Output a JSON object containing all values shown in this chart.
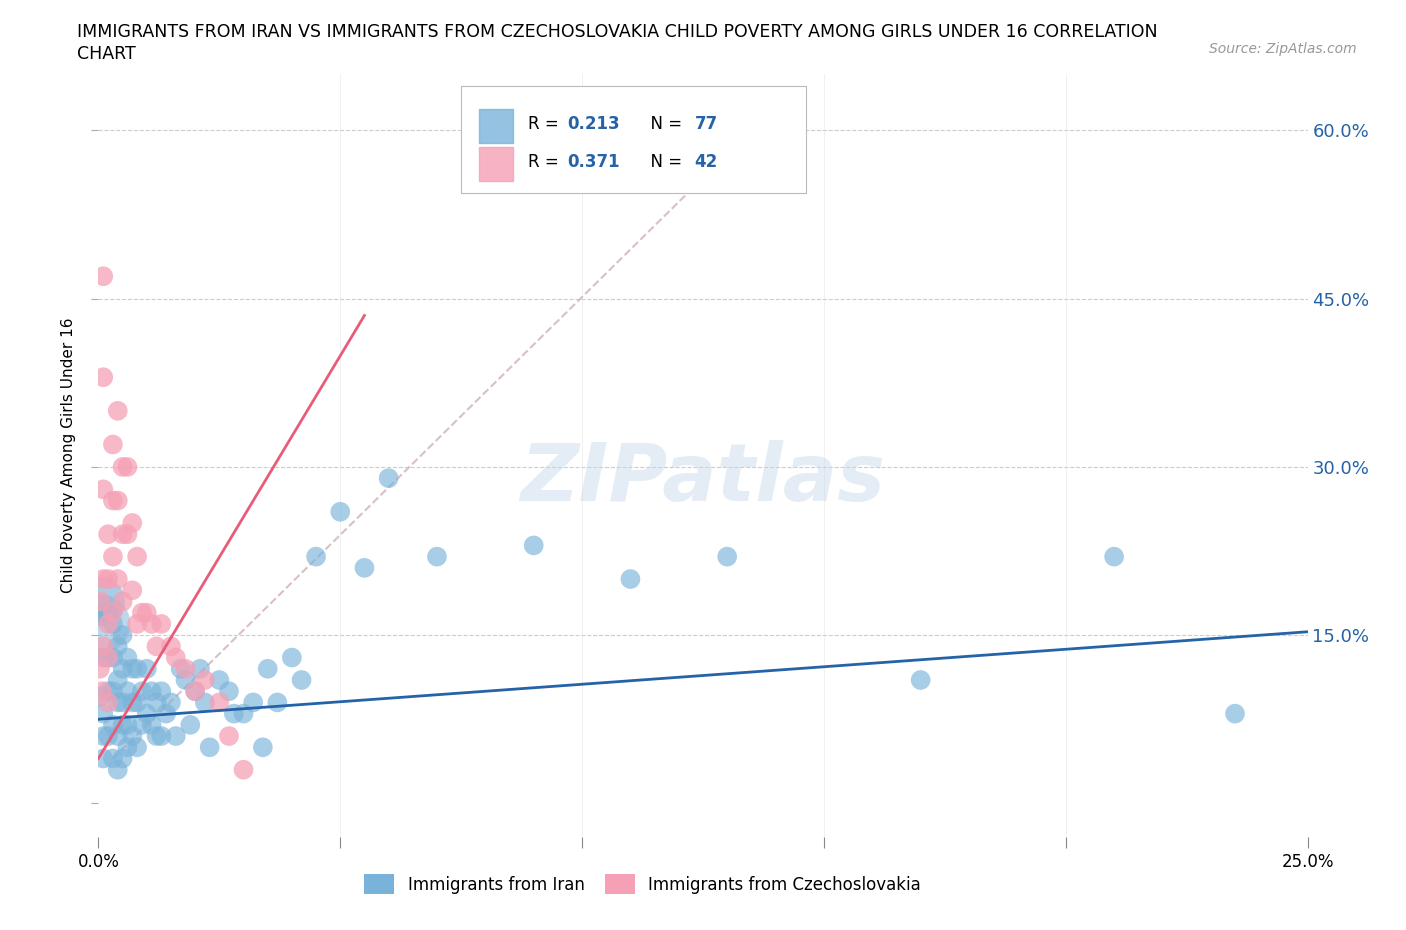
{
  "title_line1": "IMMIGRANTS FROM IRAN VS IMMIGRANTS FROM CZECHOSLOVAKIA CHILD POVERTY AMONG GIRLS UNDER 16 CORRELATION",
  "title_line2": "CHART",
  "source": "Source: ZipAtlas.com",
  "ylabel": "Child Poverty Among Girls Under 16",
  "watermark": "ZIPatlas",
  "background_color": "#ffffff",
  "xlim": [
    0.0,
    0.25
  ],
  "ylim": [
    -0.03,
    0.65
  ],
  "yticks": [
    0.0,
    0.15,
    0.3,
    0.45,
    0.6
  ],
  "xticks": [
    0.0,
    0.05,
    0.1,
    0.15,
    0.2,
    0.25
  ],
  "ytick_labels": [
    "",
    "15.0%",
    "30.0%",
    "45.0%",
    "60.0%"
  ],
  "blue_color": "#7ab3d9",
  "pink_color": "#f5a0b5",
  "blue_line_color": "#2563a8",
  "pink_line_color": "#e85c7a",
  "diag_color": "#d0b0b8",
  "legend_R1": "0.213",
  "legend_N1": "77",
  "legend_R2": "0.371",
  "legend_N2": "42",
  "legend_text_color": "#2563a8",
  "blue_scatter_x": [
    0.0003,
    0.0005,
    0.0008,
    0.001,
    0.001,
    0.001,
    0.001,
    0.002,
    0.002,
    0.002,
    0.002,
    0.003,
    0.003,
    0.003,
    0.003,
    0.003,
    0.004,
    0.004,
    0.004,
    0.004,
    0.004,
    0.005,
    0.005,
    0.005,
    0.005,
    0.005,
    0.006,
    0.006,
    0.006,
    0.006,
    0.007,
    0.007,
    0.007,
    0.008,
    0.008,
    0.008,
    0.009,
    0.009,
    0.01,
    0.01,
    0.011,
    0.011,
    0.012,
    0.012,
    0.013,
    0.013,
    0.014,
    0.015,
    0.016,
    0.017,
    0.018,
    0.019,
    0.02,
    0.021,
    0.022,
    0.023,
    0.025,
    0.027,
    0.028,
    0.03,
    0.032,
    0.034,
    0.035,
    0.037,
    0.04,
    0.042,
    0.045,
    0.05,
    0.055,
    0.06,
    0.07,
    0.09,
    0.11,
    0.13,
    0.17,
    0.21,
    0.235
  ],
  "blue_scatter_y": [
    0.095,
    0.18,
    0.17,
    0.13,
    0.08,
    0.06,
    0.04,
    0.17,
    0.13,
    0.1,
    0.06,
    0.16,
    0.13,
    0.1,
    0.07,
    0.04,
    0.14,
    0.11,
    0.09,
    0.06,
    0.03,
    0.15,
    0.12,
    0.09,
    0.07,
    0.04,
    0.13,
    0.1,
    0.07,
    0.05,
    0.12,
    0.09,
    0.06,
    0.12,
    0.09,
    0.05,
    0.1,
    0.07,
    0.12,
    0.08,
    0.1,
    0.07,
    0.09,
    0.06,
    0.1,
    0.06,
    0.08,
    0.09,
    0.06,
    0.12,
    0.11,
    0.07,
    0.1,
    0.12,
    0.09,
    0.05,
    0.11,
    0.1,
    0.08,
    0.08,
    0.09,
    0.05,
    0.12,
    0.09,
    0.13,
    0.11,
    0.22,
    0.26,
    0.21,
    0.29,
    0.22,
    0.23,
    0.2,
    0.22,
    0.11,
    0.22,
    0.08
  ],
  "blue_scatter_sizes": [
    200,
    1200,
    200,
    200,
    200,
    200,
    200,
    200,
    200,
    200,
    200,
    200,
    200,
    200,
    200,
    200,
    200,
    200,
    200,
    200,
    200,
    200,
    200,
    200,
    200,
    200,
    200,
    200,
    200,
    200,
    200,
    200,
    200,
    200,
    200,
    200,
    200,
    200,
    200,
    200,
    200,
    200,
    200,
    200,
    200,
    200,
    200,
    200,
    200,
    200,
    200,
    200,
    200,
    200,
    200,
    200,
    200,
    200,
    200,
    200,
    200,
    200,
    200,
    200,
    200,
    200,
    200,
    200,
    200,
    200,
    200,
    200,
    200,
    200,
    200,
    200,
    200
  ],
  "pink_scatter_x": [
    0.0003,
    0.0005,
    0.0007,
    0.001,
    0.001,
    0.001,
    0.001,
    0.001,
    0.002,
    0.002,
    0.002,
    0.002,
    0.002,
    0.003,
    0.003,
    0.003,
    0.003,
    0.004,
    0.004,
    0.004,
    0.005,
    0.005,
    0.005,
    0.006,
    0.006,
    0.007,
    0.007,
    0.008,
    0.008,
    0.009,
    0.01,
    0.011,
    0.012,
    0.013,
    0.015,
    0.016,
    0.018,
    0.02,
    0.022,
    0.025,
    0.027,
    0.03
  ],
  "pink_scatter_y": [
    0.12,
    0.18,
    0.1,
    0.47,
    0.38,
    0.28,
    0.2,
    0.14,
    0.24,
    0.2,
    0.16,
    0.13,
    0.09,
    0.32,
    0.27,
    0.22,
    0.17,
    0.35,
    0.27,
    0.2,
    0.3,
    0.24,
    0.18,
    0.3,
    0.24,
    0.25,
    0.19,
    0.22,
    0.16,
    0.17,
    0.17,
    0.16,
    0.14,
    0.16,
    0.14,
    0.13,
    0.12,
    0.1,
    0.11,
    0.09,
    0.06,
    0.03
  ],
  "pink_scatter_sizes": [
    200,
    200,
    200,
    200,
    200,
    200,
    200,
    200,
    200,
    200,
    200,
    200,
    200,
    200,
    200,
    200,
    200,
    200,
    200,
    200,
    200,
    200,
    200,
    200,
    200,
    200,
    200,
    200,
    200,
    200,
    200,
    200,
    200,
    200,
    200,
    200,
    200,
    200,
    200,
    200,
    200,
    200
  ],
  "blue_line_x": [
    0.0,
    0.25
  ],
  "blue_line_y": [
    0.075,
    0.153
  ],
  "pink_line_x": [
    0.0,
    0.055
  ],
  "pink_line_y": [
    0.04,
    0.435
  ],
  "diag_line_x": [
    0.003,
    0.135
  ],
  "diag_line_y": [
    0.04,
    0.6
  ]
}
